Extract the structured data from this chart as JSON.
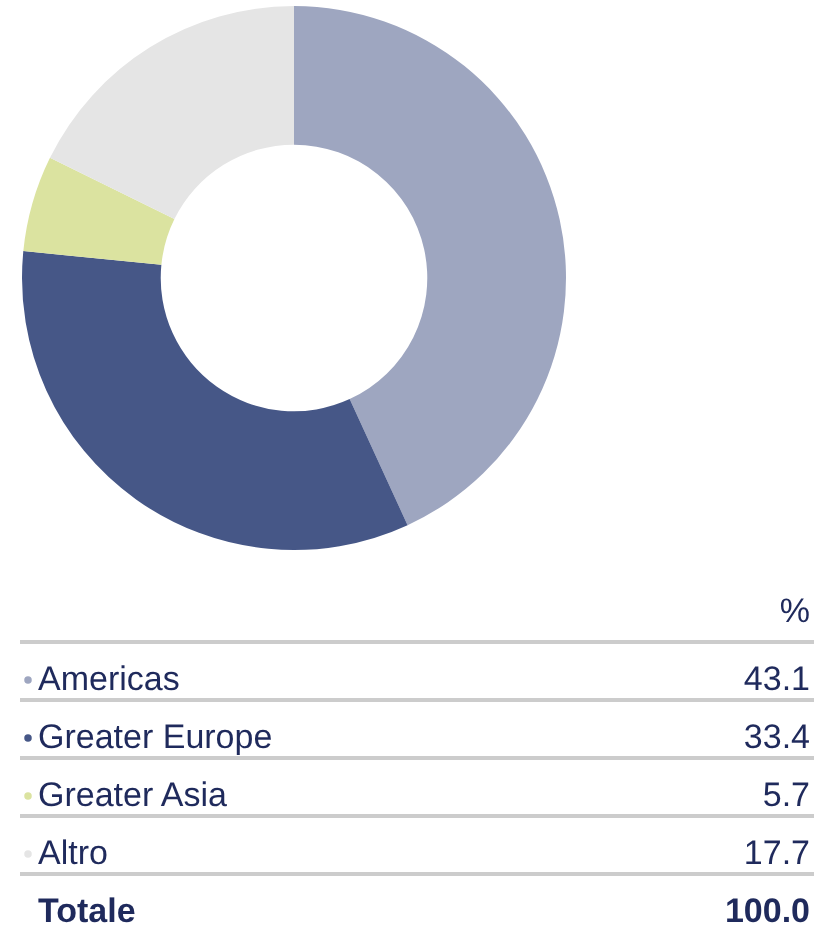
{
  "chart_data": {
    "type": "donut",
    "categories": [
      "Americas",
      "Greater Europe",
      "Greater Asia",
      "Altro"
    ],
    "values": [
      43.1,
      33.4,
      5.7,
      17.7
    ],
    "colors": [
      "#9ea6c0",
      "#465787",
      "#dbe3a0",
      "#e5e5e5"
    ],
    "data_labels": true,
    "legend": "bottom left",
    "legend_title": "%",
    "annotations": [
      "Totale",
      "100.0"
    ]
  }
}
